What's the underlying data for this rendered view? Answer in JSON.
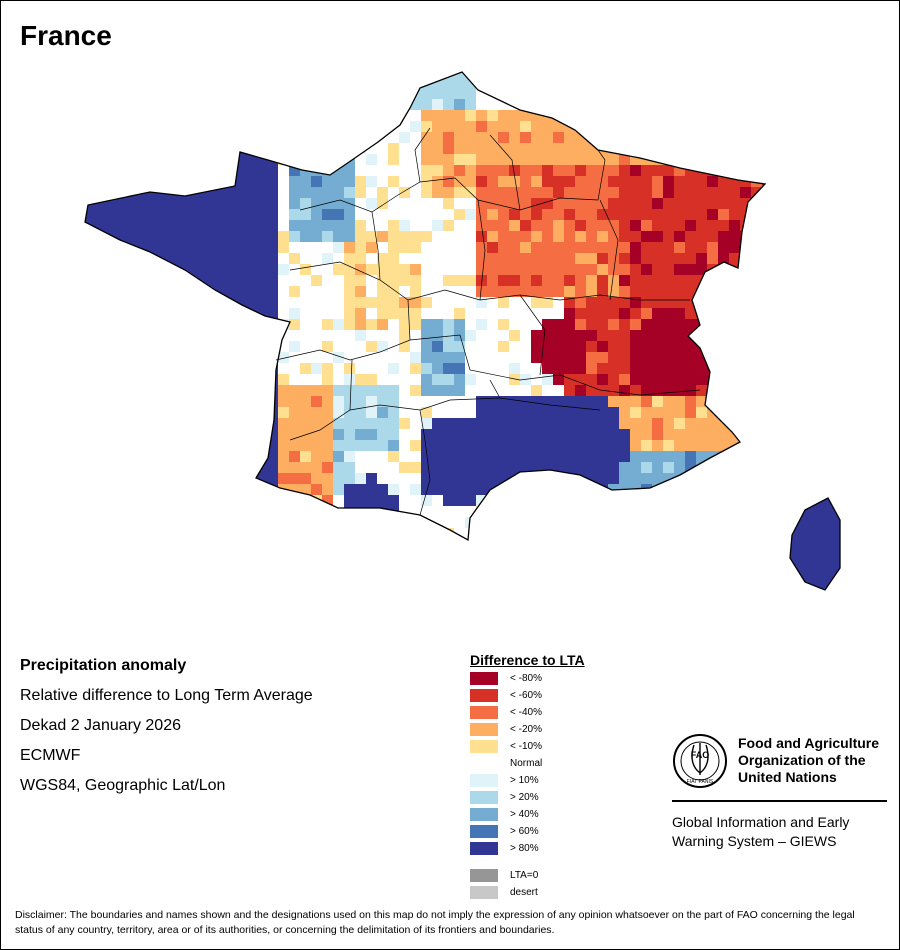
{
  "title": "France",
  "info": {
    "line1": "Precipitation anomaly",
    "line2": "Relative difference to Long Term Average",
    "line3": "Dekad 2 January 2026",
    "line4": "ECMWF",
    "line5": "WGS84, Geographic Lat/Lon"
  },
  "legend": {
    "title": "Difference to LTA",
    "items": [
      {
        "label": "< -80%",
        "color": "#a50026"
      },
      {
        "label": "< -60%",
        "color": "#d73027"
      },
      {
        "label": "< -40%",
        "color": "#f46d43"
      },
      {
        "label": "< -20%",
        "color": "#fdae61"
      },
      {
        "label": "< -10%",
        "color": "#fee090"
      },
      {
        "label": "Normal",
        "color": "#ffffff"
      },
      {
        "label": "> 10%",
        "color": "#e0f3f8"
      },
      {
        "label": "> 20%",
        "color": "#abd9e9"
      },
      {
        "label": "> 40%",
        "color": "#74add1"
      },
      {
        "label": "> 60%",
        "color": "#4575b4"
      },
      {
        "label": "> 80%",
        "color": "#313695"
      }
    ],
    "extra": [
      {
        "label": "LTA=0",
        "color": "#969696"
      },
      {
        "label": "desert",
        "color": "#c8c8c8"
      }
    ]
  },
  "fao": {
    "logo_text": "FAO",
    "logo_motto": "FIAT PANIS",
    "name": "Food and Agriculture\nOrganization of the\nUnited Nations",
    "giews": "Global Information and Early\nWarning System – GIEWS"
  },
  "disclaimer": "Disclaimer: The boundaries and names shown and the designations used on this map do not imply the expression of any opinion whatsoever on the part of FAO concerning the legal status of any country, territory, area or of its authorities, or concerning the delimitation of its frontiers and boundaries."
}
